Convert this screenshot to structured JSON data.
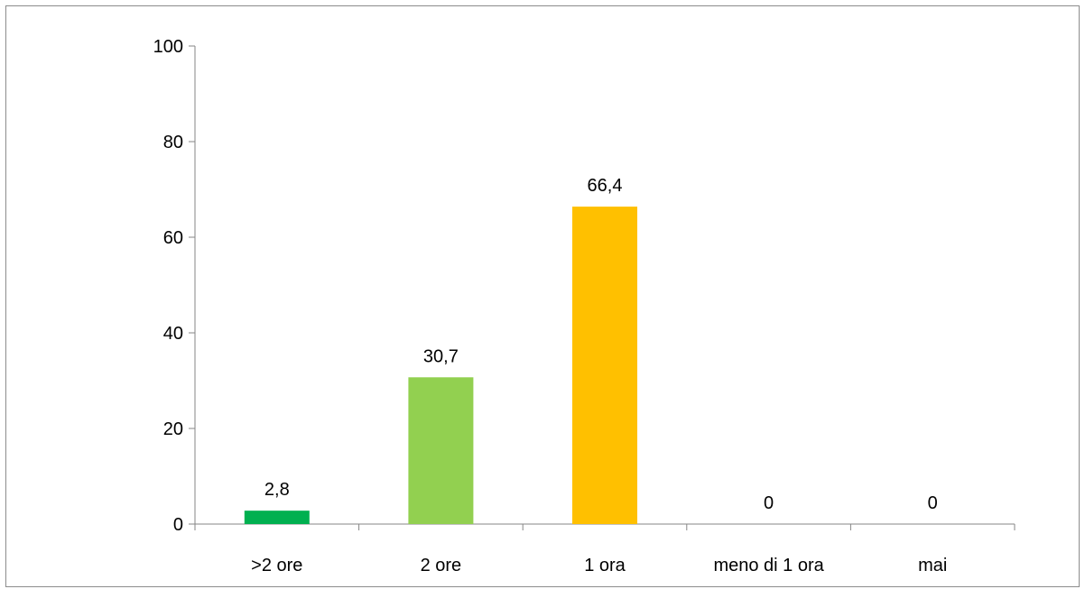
{
  "chart_data": {
    "type": "bar",
    "categories": [
      ">2 ore",
      "2 ore",
      "1 ora",
      "meno di 1 ora",
      "mai"
    ],
    "values": [
      2.8,
      30.7,
      66.4,
      0,
      0
    ],
    "data_labels": [
      "2,8",
      "30,7",
      "66,4",
      "0",
      "0"
    ],
    "colors": [
      "#00b050",
      "#92d050",
      "#ffc000",
      "#ffffff",
      "#ffffff"
    ],
    "ylim": [
      0,
      100
    ],
    "yticks": [
      0,
      20,
      40,
      60,
      80,
      100
    ],
    "ytick_labels": [
      "0",
      "20",
      "40",
      "60",
      "80",
      "100"
    ],
    "grid": false,
    "legend": "none",
    "title": "",
    "xlabel": "",
    "ylabel": ""
  }
}
